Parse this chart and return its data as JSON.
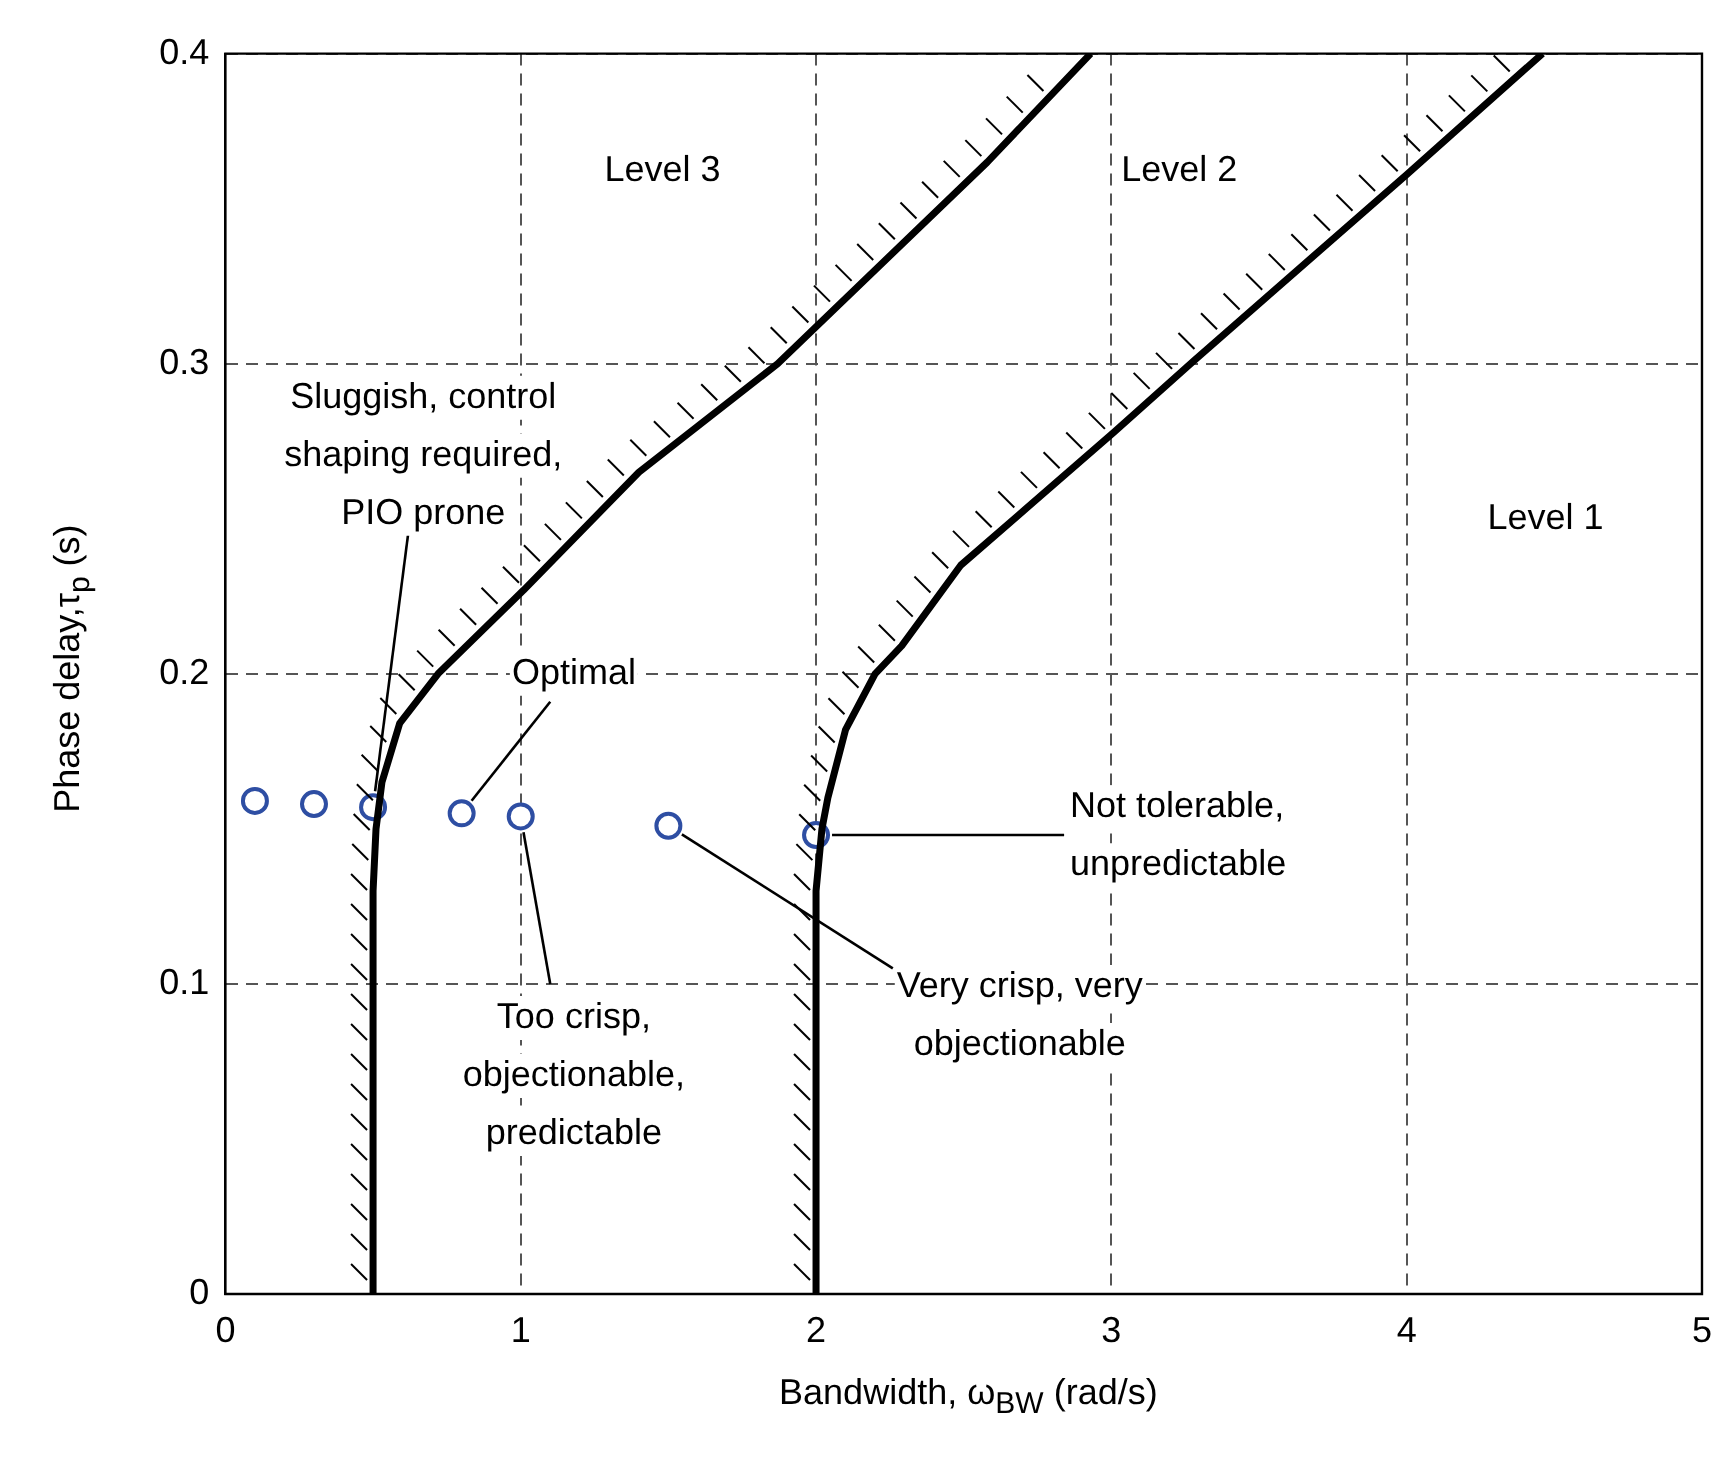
{
  "chart_data": {
    "type": "line",
    "xlabel": "Bandwidth, ω$_{BW}$ (rad/s)",
    "ylabel": "Phase delay,τ$_{p}$ (s)",
    "xlim": [
      0,
      5
    ],
    "xticks": [
      0,
      1,
      2,
      3,
      4,
      5
    ],
    "ylim": [
      0,
      0.4
    ],
    "yticks": [
      0,
      0.1,
      0.2,
      0.3,
      0.4
    ],
    "grid": true,
    "legend": false,
    "series": [
      {
        "type": "line",
        "color": "#000000",
        "marker": "none",
        "line_style": "solid",
        "x": [
          0.5,
          0.5,
          0.51,
          0.53,
          0.59,
          0.72,
          1.01,
          1.4,
          1.87,
          2.58,
          2.93
        ],
        "values": [
          0,
          0.13,
          0.15,
          0.165,
          0.184,
          0.2,
          0.227,
          0.265,
          0.3,
          0.365,
          0.4
        ]
      },
      {
        "type": "line",
        "color": "#000000",
        "marker": "none",
        "line_style": "solid",
        "x": [
          2,
          2,
          2.02,
          2.04,
          2.1,
          2.2,
          2.29,
          2.49,
          3.01,
          3.28,
          4.0,
          4.46
        ],
        "values": [
          0,
          0.13,
          0.15,
          0.16,
          0.182,
          0.2,
          0.209,
          0.235,
          0.278,
          0.301,
          0.361,
          0.4
        ]
      },
      {
        "type": "scatter",
        "color": "#2e4ea3",
        "marker": "circle",
        "x": [
          0.1,
          0.3,
          0.5,
          0.8,
          1.0,
          1.5,
          2.0
        ],
        "values": [
          0.159,
          0.158,
          0.157,
          0.155,
          0.154,
          0.151,
          0.148
        ]
      }
    ],
    "annotations": [
      "Level 3",
      "Level 2",
      "Level 1",
      {
        "text": "Sluggish, control\nshaping required,\nPIO prone",
        "x": 0.5,
        "y": 0.157
      },
      {
        "text": "Optimal",
        "x": 0.8,
        "y": 0.155
      },
      {
        "text": "Too crisp,\nobjectionable,\npredictable",
        "x": 1.0,
        "y": 0.154
      },
      {
        "text": "Very crisp, very\nobjectionable",
        "x": 1.5,
        "y": 0.151
      },
      {
        "text": "Not tolerable,\nunpredictable",
        "x": 2.0,
        "y": 0.148
      }
    ]
  }
}
